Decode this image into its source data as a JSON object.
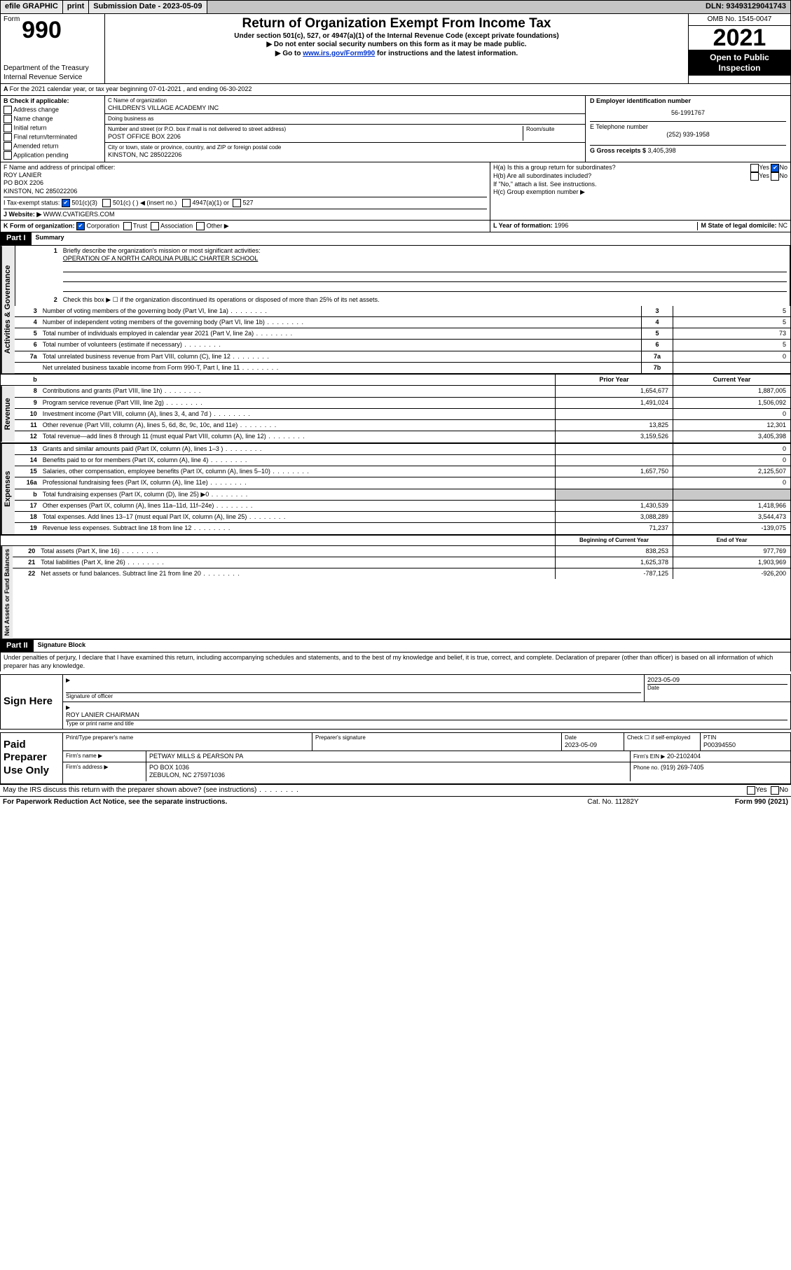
{
  "topbar": {
    "efile": "efile GRAPHIC",
    "print": "print",
    "subdate_label": "Submission Date - 2023-05-09",
    "dln": "DLN: 93493129041743"
  },
  "header": {
    "form_prefix": "Form",
    "form_no": "990",
    "dept1": "Department of the Treasury",
    "dept2": "Internal Revenue Service",
    "title": "Return of Organization Exempt From Income Tax",
    "sub": "Under section 501(c), 527, or 4947(a)(1) of the Internal Revenue Code (except private foundations)",
    "instr1": "▶ Do not enter social security numbers on this form as it may be made public.",
    "instr2_pre": "▶ Go to ",
    "instr2_link": "www.irs.gov/Form990",
    "instr2_post": " for instructions and the latest information.",
    "omb": "OMB No. 1545-0047",
    "year": "2021",
    "public1": "Open to Public",
    "public2": "Inspection"
  },
  "lineA": "For the 2021 calendar year, or tax year beginning 07-01-2021    , and ending 06-30-2022",
  "b_label": "B Check if applicable:",
  "b_opts": [
    "Address change",
    "Name change",
    "Initial return",
    "Final return/terminated",
    "Amended return",
    "Application pending"
  ],
  "c": {
    "name_label": "C Name of organization",
    "name": "CHILDREN'S VILLAGE ACADEMY INC",
    "dba_label": "Doing business as",
    "street_label": "Number and street (or P.O. box if mail is not delivered to street address)",
    "room_label": "Room/suite",
    "street": "POST OFFICE BOX 2206",
    "city_label": "City or town, state or province, country, and ZIP or foreign postal code",
    "city": "KINSTON, NC  285022206"
  },
  "d": {
    "ein_label": "D Employer identification number",
    "ein": "56-1991767",
    "phone_label": "E Telephone number",
    "phone": "(252) 939-1958",
    "gross_label": "G Gross receipts $ ",
    "gross": "3,405,398"
  },
  "f": {
    "label": "F  Name and address of principal officer:",
    "name": "ROY LANIER",
    "addr1": "PO BOX 2206",
    "addr2": "KINSTON, NC  285022206"
  },
  "h": {
    "a_label": "H(a)  Is this a group return for subordinates?",
    "b_label": "H(b)  Are all subordinates included?",
    "b_note": "If \"No,\" attach a list. See instructions.",
    "c_label": "H(c)  Group exemption number ▶",
    "yes": "Yes",
    "no": "No"
  },
  "i": {
    "label": "I  Tax-exempt status:",
    "o1": "501(c)(3)",
    "o2": "501(c) (   ) ◀ (insert no.)",
    "o3": "4947(a)(1) or",
    "o4": "527"
  },
  "j": {
    "label": "J  Website: ▶",
    "val": "WWW.CVATIGERS.COM"
  },
  "k": {
    "label": "K Form of organization:",
    "corp": "Corporation",
    "trust": "Trust",
    "assoc": "Association",
    "other": "Other ▶"
  },
  "l": {
    "label": "L Year of formation: ",
    "val": "1996"
  },
  "m": {
    "label": "M State of legal domicile: ",
    "val": "NC"
  },
  "part1": {
    "header": "Part I",
    "title": "Summary",
    "q1": "Briefly describe the organization's mission or most significant activities:",
    "q1a": "OPERATION OF A NORTH CAROLINA PUBLIC CHARTER SCHOOL",
    "q2": "Check this box ▶ ☐  if the organization discontinued its operations or disposed of more than 25% of its net assets.",
    "rows_gov": [
      {
        "n": "3",
        "d": "Number of voting members of the governing body (Part VI, line 1a)",
        "c": "3",
        "v": "5"
      },
      {
        "n": "4",
        "d": "Number of independent voting members of the governing body (Part VI, line 1b)",
        "c": "4",
        "v": "5"
      },
      {
        "n": "5",
        "d": "Total number of individuals employed in calendar year 2021 (Part V, line 2a)",
        "c": "5",
        "v": "73"
      },
      {
        "n": "6",
        "d": "Total number of volunteers (estimate if necessary)",
        "c": "6",
        "v": "5"
      },
      {
        "n": "7a",
        "d": "Total unrelated business revenue from Part VIII, column (C), line 12",
        "c": "7a",
        "v": "0"
      },
      {
        "n": "",
        "d": "Net unrelated business taxable income from Form 990-T, Part I, line 11",
        "c": "7b",
        "v": ""
      }
    ],
    "hdr_b": "b",
    "hdr_prior": "Prior Year",
    "hdr_curr": "Current Year",
    "rev": [
      {
        "n": "8",
        "d": "Contributions and grants (Part VIII, line 1h)",
        "p": "1,654,677",
        "c": "1,887,005"
      },
      {
        "n": "9",
        "d": "Program service revenue (Part VIII, line 2g)",
        "p": "1,491,024",
        "c": "1,506,092"
      },
      {
        "n": "10",
        "d": "Investment income (Part VIII, column (A), lines 3, 4, and 7d )",
        "p": "",
        "c": "0"
      },
      {
        "n": "11",
        "d": "Other revenue (Part VIII, column (A), lines 5, 6d, 8c, 9c, 10c, and 11e)",
        "p": "13,825",
        "c": "12,301"
      },
      {
        "n": "12",
        "d": "Total revenue—add lines 8 through 11 (must equal Part VIII, column (A), line 12)",
        "p": "3,159,526",
        "c": "3,405,398"
      }
    ],
    "exp": [
      {
        "n": "13",
        "d": "Grants and similar amounts paid (Part IX, column (A), lines 1–3 )",
        "p": "",
        "c": "0"
      },
      {
        "n": "14",
        "d": "Benefits paid to or for members (Part IX, column (A), line 4)",
        "p": "",
        "c": "0"
      },
      {
        "n": "15",
        "d": "Salaries, other compensation, employee benefits (Part IX, column (A), lines 5–10)",
        "p": "1,657,750",
        "c": "2,125,507"
      },
      {
        "n": "16a",
        "d": "Professional fundraising fees (Part IX, column (A), line 11e)",
        "p": "",
        "c": "0"
      },
      {
        "n": "b",
        "d": "Total fundraising expenses (Part IX, column (D), line 25) ▶0",
        "p": "shaded",
        "c": "shaded"
      },
      {
        "n": "17",
        "d": "Other expenses (Part IX, column (A), lines 11a–11d, 11f–24e)",
        "p": "1,430,539",
        "c": "1,418,966"
      },
      {
        "n": "18",
        "d": "Total expenses. Add lines 13–17 (must equal Part IX, column (A), line 25)",
        "p": "3,088,289",
        "c": "3,544,473"
      },
      {
        "n": "19",
        "d": "Revenue less expenses. Subtract line 18 from line 12",
        "p": "71,237",
        "c": "-139,075"
      }
    ],
    "hdr_begin": "Beginning of Current Year",
    "hdr_end": "End of Year",
    "net": [
      {
        "n": "20",
        "d": "Total assets (Part X, line 16)",
        "p": "838,253",
        "c": "977,769"
      },
      {
        "n": "21",
        "d": "Total liabilities (Part X, line 26)",
        "p": "1,625,378",
        "c": "1,903,969"
      },
      {
        "n": "22",
        "d": "Net assets or fund balances. Subtract line 21 from line 20",
        "p": "-787,125",
        "c": "-926,200"
      }
    ]
  },
  "part2": {
    "header": "Part II",
    "title": "Signature Block"
  },
  "declaration": "Under penalties of perjury, I declare that I have examined this return, including accompanying schedules and statements, and to the best of my knowledge and belief, it is true, correct, and complete. Declaration of preparer (other than officer) is based on all information of which preparer has any knowledge.",
  "sign": {
    "here": "Sign Here",
    "sig_label": "Signature of officer",
    "date_label": "Date",
    "date": "2023-05-09",
    "name": "ROY LANIER  CHAIRMAN",
    "name_label": "Type or print name and title"
  },
  "paid": {
    "label": "Paid Preparer Use Only",
    "h1": "Print/Type preparer's name",
    "h2": "Preparer's signature",
    "h3": "Date",
    "h4": "Check ☐ if self-employed",
    "h5": "PTIN",
    "date": "2023-05-09",
    "ptin": "P00394550",
    "firm_l": "Firm's name    ▶",
    "firm": "PETWAY MILLS & PEARSON PA",
    "ein_l": "Firm's EIN ▶",
    "ein": "20-2102404",
    "addr_l": "Firm's address ▶",
    "addr1": "PO BOX 1036",
    "addr2": "ZEBULON, NC  275971036",
    "phone_l": "Phone no.",
    "phone": "(919) 269-7405"
  },
  "footer": {
    "discuss": "May the IRS discuss this return with the preparer shown above? (see instructions)",
    "paperwork": "For Paperwork Reduction Act Notice, see the separate instructions.",
    "cat": "Cat. No. 11282Y",
    "form": "Form 990 (2021)"
  },
  "side_labels": {
    "gov": "Activities & Governance",
    "rev": "Revenue",
    "exp": "Expenses",
    "net": "Net Assets or Fund Balances"
  }
}
